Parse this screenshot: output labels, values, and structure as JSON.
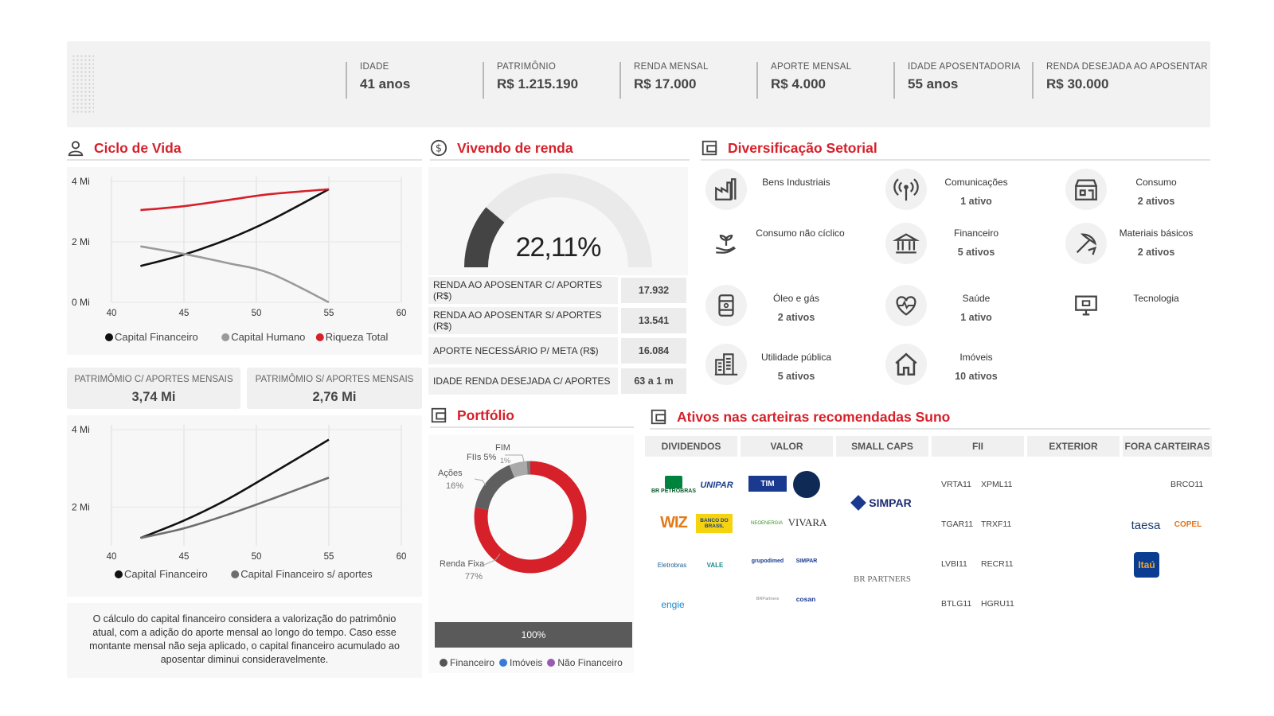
{
  "header": {
    "kpis": [
      {
        "label": "IDADE",
        "value": "41 anos"
      },
      {
        "label": "PATRIMÔNIO",
        "value": "R$ 1.215.190"
      },
      {
        "label": "RENDA MENSAL",
        "value": "R$ 17.000"
      },
      {
        "label": "APORTE MENSAL",
        "value": "R$ 4.000"
      },
      {
        "label": "IDADE APOSENTADORIA",
        "value": "55 anos"
      },
      {
        "label": "RENDA DESEJADA AO APOSENTAR",
        "value": "R$ 30.000"
      }
    ]
  },
  "ciclo": {
    "title": "Ciclo de Vida",
    "chart1": {
      "yticks": [
        "4 Mi",
        "2 Mi",
        "0 Mi"
      ],
      "xticks": [
        "40",
        "45",
        "50",
        "55",
        "60"
      ],
      "legend": [
        "Capital Financeiro",
        "Capital Humano",
        "Riqueza Total"
      ]
    },
    "box_com": {
      "label": "PATRIMÔMIO C/ APORTES MENSAIS",
      "value": "3,74 Mi"
    },
    "box_sem": {
      "label": "PATRIMÔMIO S/ APORTES MENSAIS",
      "value": "2,76 Mi"
    },
    "chart2": {
      "yticks": [
        "4 Mi",
        "2 Mi"
      ],
      "xticks": [
        "40",
        "45",
        "50",
        "55",
        "60"
      ],
      "legend": [
        "Capital Financeiro",
        "Capital Financeiro s/ aportes"
      ]
    },
    "note": "O cálculo do capital financeiro considera a valorização do patrimônio atual, com a adição do aporte mensal ao longo do tempo. Caso esse montante mensal não seja aplicado, o capital financeiro acumulado ao aposentar diminui consideravelmente."
  },
  "chart_data": [
    {
      "type": "line",
      "x": [
        42,
        55
      ],
      "ylim": [
        0,
        4
      ],
      "xlim": [
        40,
        60
      ],
      "series": [
        {
          "name": "Capital Financeiro",
          "x": [
            42,
            45,
            48,
            51,
            55
          ],
          "values": [
            1.2,
            1.58,
            2.08,
            2.72,
            3.74
          ]
        },
        {
          "name": "Capital Humano",
          "x": [
            42,
            45,
            48,
            51,
            55
          ],
          "values": [
            1.85,
            1.6,
            1.3,
            0.95,
            0.0
          ]
        },
        {
          "name": "Riqueza Total",
          "x": [
            42,
            45,
            48,
            51,
            55
          ],
          "values": [
            3.05,
            3.18,
            3.38,
            3.58,
            3.74
          ]
        }
      ]
    },
    {
      "type": "line",
      "ylim": [
        1,
        4
      ],
      "xlim": [
        40,
        60
      ],
      "series": [
        {
          "name": "Capital Financeiro",
          "x": [
            42,
            45,
            48,
            51,
            55
          ],
          "values": [
            1.2,
            1.65,
            2.2,
            2.85,
            3.74
          ]
        },
        {
          "name": "Capital Financeiro s/ aportes",
          "x": [
            42,
            45,
            48,
            51,
            55
          ],
          "values": [
            1.2,
            1.45,
            1.8,
            2.2,
            2.76
          ]
        }
      ]
    },
    {
      "type": "pie",
      "categories": [
        "Renda Fixa",
        "Ações",
        "FIIs",
        "FIM"
      ],
      "values": [
        77,
        16,
        5,
        1
      ],
      "labels": [
        {
          "name": "Renda Fixa",
          "pct": "77%"
        },
        {
          "name": "Ações",
          "pct": "16%"
        },
        {
          "name": "FIIs",
          "pct": "5%"
        },
        {
          "name": "FIM",
          "pct": "1%"
        }
      ]
    }
  ],
  "renda": {
    "title": "Vivendo de renda",
    "gauge_value": "22,11%",
    "gauge_fraction": 0.2211,
    "rows": [
      {
        "label": "RENDA AO APOSENTAR C/ APORTES (R$)",
        "value": "17.932"
      },
      {
        "label": "RENDA AO APOSENTAR S/ APORTES (R$)",
        "value": "13.541"
      },
      {
        "label": "APORTE NECESSÁRIO P/ META (R$)",
        "value": "16.084"
      },
      {
        "label": "IDADE RENDA DESEJADA C/ APORTES",
        "value": "63 a 1 m"
      }
    ]
  },
  "portfolio": {
    "title": "Portfólio",
    "bar_label": "100%",
    "legend": [
      "Financeiro",
      "Imóveis",
      "Não Financeiro"
    ]
  },
  "setorial": {
    "title": "Diversificação Setorial",
    "sectors": [
      {
        "name": "Bens Industriais",
        "count": ""
      },
      {
        "name": "Comunicações",
        "count": "1 ativo"
      },
      {
        "name": "Consumo",
        "count": "2 ativos"
      },
      {
        "name": "Consumo não cíclico",
        "count": ""
      },
      {
        "name": "Financeiro",
        "count": "5 ativos"
      },
      {
        "name": "Materiais básicos",
        "count": "2 ativos"
      },
      {
        "name": "Óleo e gás",
        "count": "2 ativos"
      },
      {
        "name": "Saúde",
        "count": "1 ativo"
      },
      {
        "name": "Tecnologia",
        "count": ""
      },
      {
        "name": "Utilidade pública",
        "count": "5 ativos"
      },
      {
        "name": "Imóveis",
        "count": "10 ativos"
      }
    ]
  },
  "ativos": {
    "title": "Ativos nas carteiras recomendadas Suno",
    "categories": [
      "DIVIDENDOS",
      "VALOR",
      "SMALL CAPS",
      "FII",
      "EXTERIOR",
      "FORA CARTEIRAS"
    ],
    "dividendos": [
      "BR PETROBRAS",
      "UNIPAR",
      "WIZ",
      "BANCO DO BRASIL",
      "Eletrobras",
      "VALE",
      "engie"
    ],
    "valor": [
      "TIM",
      "NEOENERGIA",
      "VIVARA",
      "grupodimed",
      "SIMPAR",
      "BRPartners",
      "cosan"
    ],
    "small_caps": [
      "SIMPAR",
      "BR PARTNERS"
    ],
    "fii_col1": [
      "VRTA11",
      "TGAR11",
      "LVBI11",
      "BTLG11"
    ],
    "fii_col2": [
      "XPML11",
      "TRXF11",
      "RECR11",
      "HGRU11"
    ],
    "fora": [
      "BRCO11",
      "taesa",
      "COPEL",
      "Itaú"
    ]
  }
}
